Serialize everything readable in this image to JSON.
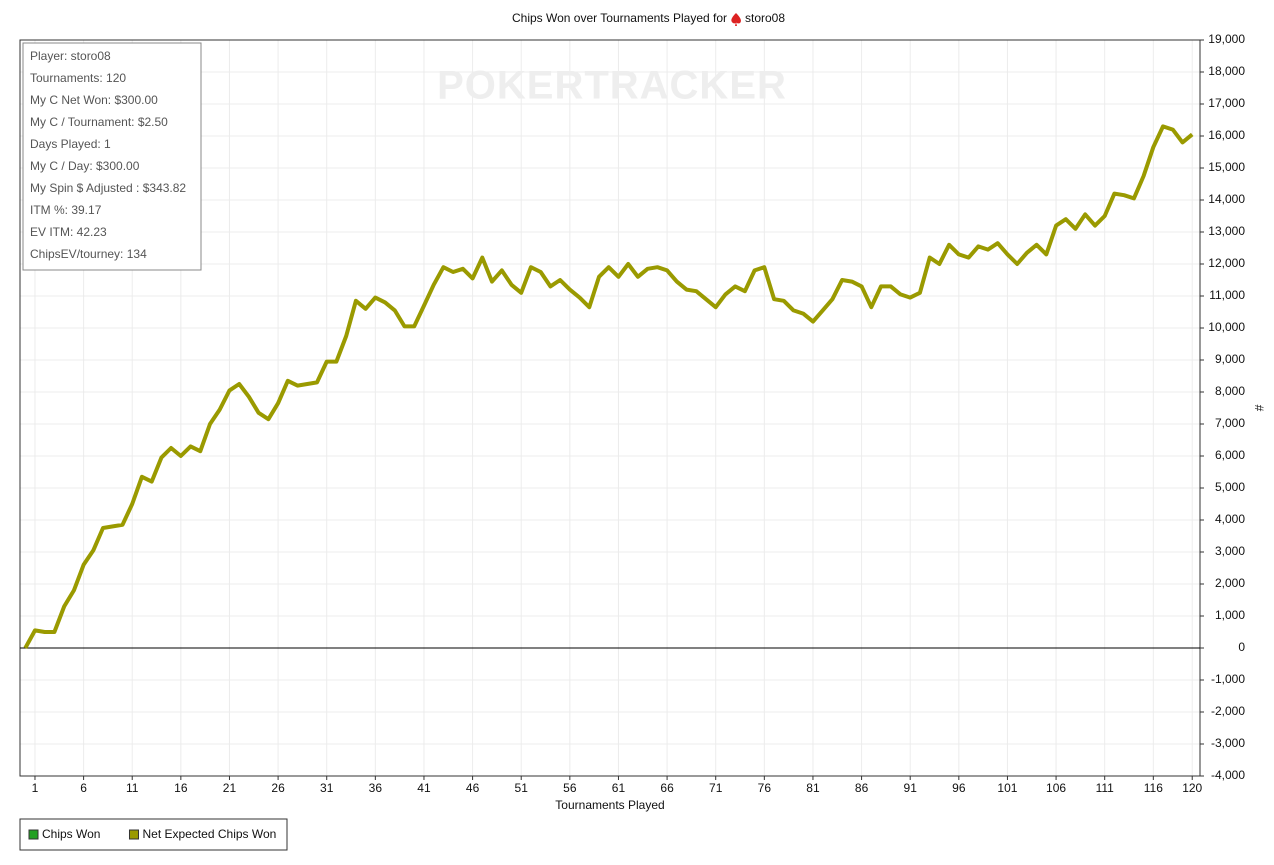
{
  "chart_data": {
    "type": "line",
    "title": "Chips Won over Tournaments Played for",
    "title_player": "storo08",
    "watermark": "POKERTRACKER",
    "xlabel": "Tournaments Played",
    "ylabel": "#",
    "info": [
      "Player: storo08",
      "Tournaments: 120",
      "My C Net Won: $300.00",
      "My C / Tournament: $2.50",
      "Days Played: 1",
      "My C / Day: $300.00",
      "My Spin $ Adjusted : $343.82",
      "ITM %: 39.17",
      "EV ITM: 42.23",
      "ChipsEV/tourney: 134"
    ],
    "legend": [
      {
        "name": "Chips Won",
        "color": "#22a022"
      },
      {
        "name": "Net Expected Chips Won",
        "color": "#9a9a00"
      }
    ],
    "x": [
      0,
      1,
      2,
      3,
      4,
      5,
      6,
      7,
      8,
      9,
      10,
      11,
      12,
      13,
      14,
      15,
      16,
      17,
      18,
      19,
      20,
      21,
      22,
      23,
      24,
      25,
      26,
      27,
      28,
      29,
      30,
      31,
      32,
      33,
      34,
      35,
      36,
      37,
      38,
      39,
      40,
      41,
      42,
      43,
      44,
      45,
      46,
      47,
      48,
      49,
      50,
      51,
      52,
      53,
      54,
      55,
      56,
      57,
      58,
      59,
      60,
      61,
      62,
      63,
      64,
      65,
      66,
      67,
      68,
      69,
      70,
      71,
      72,
      73,
      74,
      75,
      76,
      77,
      78,
      79,
      80,
      81,
      82,
      83,
      84,
      85,
      86,
      87,
      88,
      89,
      90,
      91,
      92,
      93,
      94,
      95,
      96,
      97,
      98,
      99,
      100,
      101,
      102,
      103,
      104,
      105,
      106,
      107,
      108,
      109,
      110,
      111,
      112,
      113,
      114,
      115,
      116,
      117,
      118,
      119,
      120
    ],
    "series": [
      {
        "name": "Net Expected Chips Won",
        "color": "#9a9a00",
        "values": [
          0,
          550,
          500,
          500,
          1300,
          1800,
          2600,
          3050,
          3750,
          3800,
          3850,
          4500,
          5350,
          5200,
          5950,
          6250,
          6000,
          6300,
          6150,
          7000,
          7450,
          8050,
          8250,
          7850,
          7350,
          7150,
          7650,
          8350,
          8200,
          8250,
          8300,
          8950,
          8950,
          9750,
          10850,
          10600,
          10950,
          10800,
          10550,
          10050,
          10050,
          10700,
          11350,
          11900,
          11750,
          11850,
          11550,
          12200,
          11450,
          11800,
          11350,
          11100,
          11900,
          11750,
          11300,
          11500,
          11200,
          10950,
          10650,
          11600,
          11900,
          11600,
          12000,
          11600,
          11850,
          11900,
          11800,
          11450,
          11200,
          11150,
          10900,
          10650,
          11050,
          11300,
          11150,
          11800,
          11900,
          10900,
          10850,
          10550,
          10450,
          10200,
          10550,
          10900,
          11500,
          11450,
          11300,
          10650,
          11300,
          11300,
          11050,
          10950,
          11100,
          12200,
          12000,
          12600,
          12300,
          12200,
          12550,
          12450,
          12650,
          12300,
          12000,
          12350,
          12600,
          12300,
          13200,
          13400,
          13100,
          13550,
          13200,
          13500,
          14200,
          14150,
          14050,
          14750,
          15650,
          16300,
          16200,
          15800,
          16050
        ]
      }
    ],
    "xlim": [
      -0.54,
      120.8
    ],
    "ylim": [
      -4000,
      19000
    ],
    "xticks": [
      1,
      6,
      11,
      16,
      21,
      26,
      31,
      36,
      41,
      46,
      51,
      56,
      61,
      66,
      71,
      76,
      81,
      86,
      91,
      96,
      101,
      106,
      111,
      116,
      120
    ],
    "yticks": [
      {
        "value": -4000,
        "label": "-4,000"
      },
      {
        "value": -3000,
        "label": "-3,000"
      },
      {
        "value": -2000,
        "label": "-2,000"
      },
      {
        "value": -1000,
        "label": "-1,000"
      },
      0,
      {
        "value": 1000,
        "label": "1,000"
      },
      {
        "value": 2000,
        "label": "2,000"
      },
      {
        "value": 3000,
        "label": "3,000"
      },
      {
        "value": 4000,
        "label": "4,000"
      },
      {
        "value": 5000,
        "label": "5,000"
      },
      {
        "value": 6000,
        "label": "6,000"
      },
      {
        "value": 7000,
        "label": "7,000"
      },
      {
        "value": 8000,
        "label": "8,000"
      },
      {
        "value": 9000,
        "label": "9,000"
      },
      {
        "value": 10000,
        "label": "10,000"
      },
      {
        "value": 11000,
        "label": "11,000"
      },
      {
        "value": 12000,
        "label": "12,000"
      },
      {
        "value": 13000,
        "label": "13,000"
      },
      {
        "value": 14000,
        "label": "14,000"
      },
      {
        "value": 15000,
        "label": "15,000"
      },
      {
        "value": 16000,
        "label": "16,000"
      },
      {
        "value": 17000,
        "label": "17,000"
      },
      {
        "value": 18000,
        "label": "18,000"
      },
      {
        "value": 19000,
        "label": "19,000"
      }
    ],
    "grid": true
  }
}
